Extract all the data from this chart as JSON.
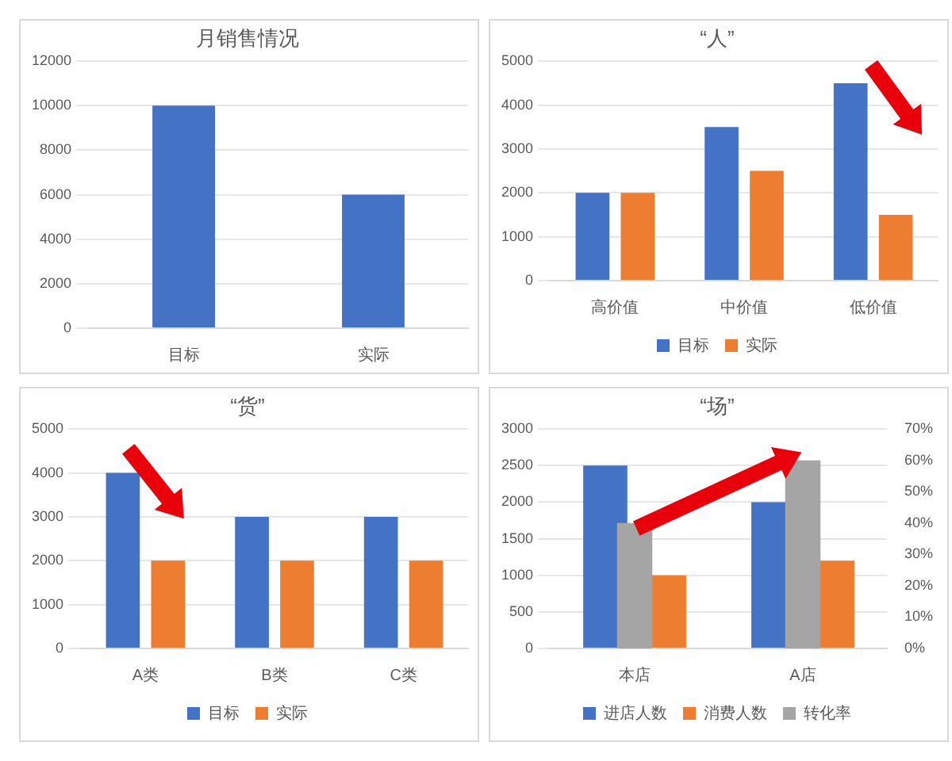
{
  "chart_data": [
    {
      "type": "bar",
      "title": "月销售情况",
      "categories": [
        "目标",
        "实际"
      ],
      "values": [
        10000,
        6000
      ],
      "color": "#4472c4",
      "ylim": [
        0,
        12000
      ],
      "yticks": [
        0,
        2000,
        4000,
        6000,
        8000,
        10000,
        12000
      ],
      "grid": "y",
      "legend": false
    },
    {
      "type": "bar",
      "title": "“人”",
      "categories": [
        "高价值",
        "中价值",
        "低价值"
      ],
      "series": [
        {
          "name": "目标",
          "color": "#4472c4",
          "values": [
            2000,
            3500,
            4500
          ]
        },
        {
          "name": "实际",
          "color": "#ed7d31",
          "values": [
            2000,
            2500,
            1500
          ]
        }
      ],
      "ylim": [
        0,
        5000
      ],
      "yticks": [
        0,
        1000,
        2000,
        3000,
        4000,
        5000
      ],
      "grid": "y",
      "legend": "bottom"
    },
    {
      "type": "bar",
      "title": "“货”",
      "categories": [
        "A类",
        "B类",
        "C类"
      ],
      "series": [
        {
          "name": "目标",
          "color": "#4472c4",
          "values": [
            4000,
            3000,
            3000
          ]
        },
        {
          "name": "实际",
          "color": "#ed7d31",
          "values": [
            2000,
            2000,
            2000
          ]
        }
      ],
      "ylim": [
        0,
        5000
      ],
      "yticks": [
        0,
        1000,
        2000,
        3000,
        4000,
        5000
      ],
      "grid": "y",
      "legend": "bottom"
    },
    {
      "type": "bar",
      "title": "“场”",
      "categories": [
        "本店",
        "A店"
      ],
      "series": [
        {
          "name": "进店人数",
          "color": "#4472c4",
          "values": [
            2500,
            2000
          ]
        },
        {
          "name": "消费人数",
          "color": "#ed7d31",
          "values": [
            1000,
            1200
          ]
        },
        {
          "name": "转化率",
          "color": "#a5a5a5",
          "values": [
            40,
            60
          ],
          "axis": "y2"
        }
      ],
      "ylim": [
        0,
        3000
      ],
      "yticks": [
        0,
        500,
        1000,
        1500,
        2000,
        2500,
        3000
      ],
      "y2lim": [
        0,
        70
      ],
      "y2ticks": [
        {
          "value": 0,
          "label": "0%"
        },
        {
          "value": 10,
          "label": "10%"
        },
        {
          "value": 20,
          "label": "20%"
        },
        {
          "value": 30,
          "label": "30%"
        },
        {
          "value": 40,
          "label": "40%"
        },
        {
          "value": 50,
          "label": "50%"
        },
        {
          "value": 60,
          "label": "60%"
        },
        {
          "value": 70,
          "label": "70%"
        }
      ],
      "grid": "y",
      "legend": "bottom"
    }
  ]
}
